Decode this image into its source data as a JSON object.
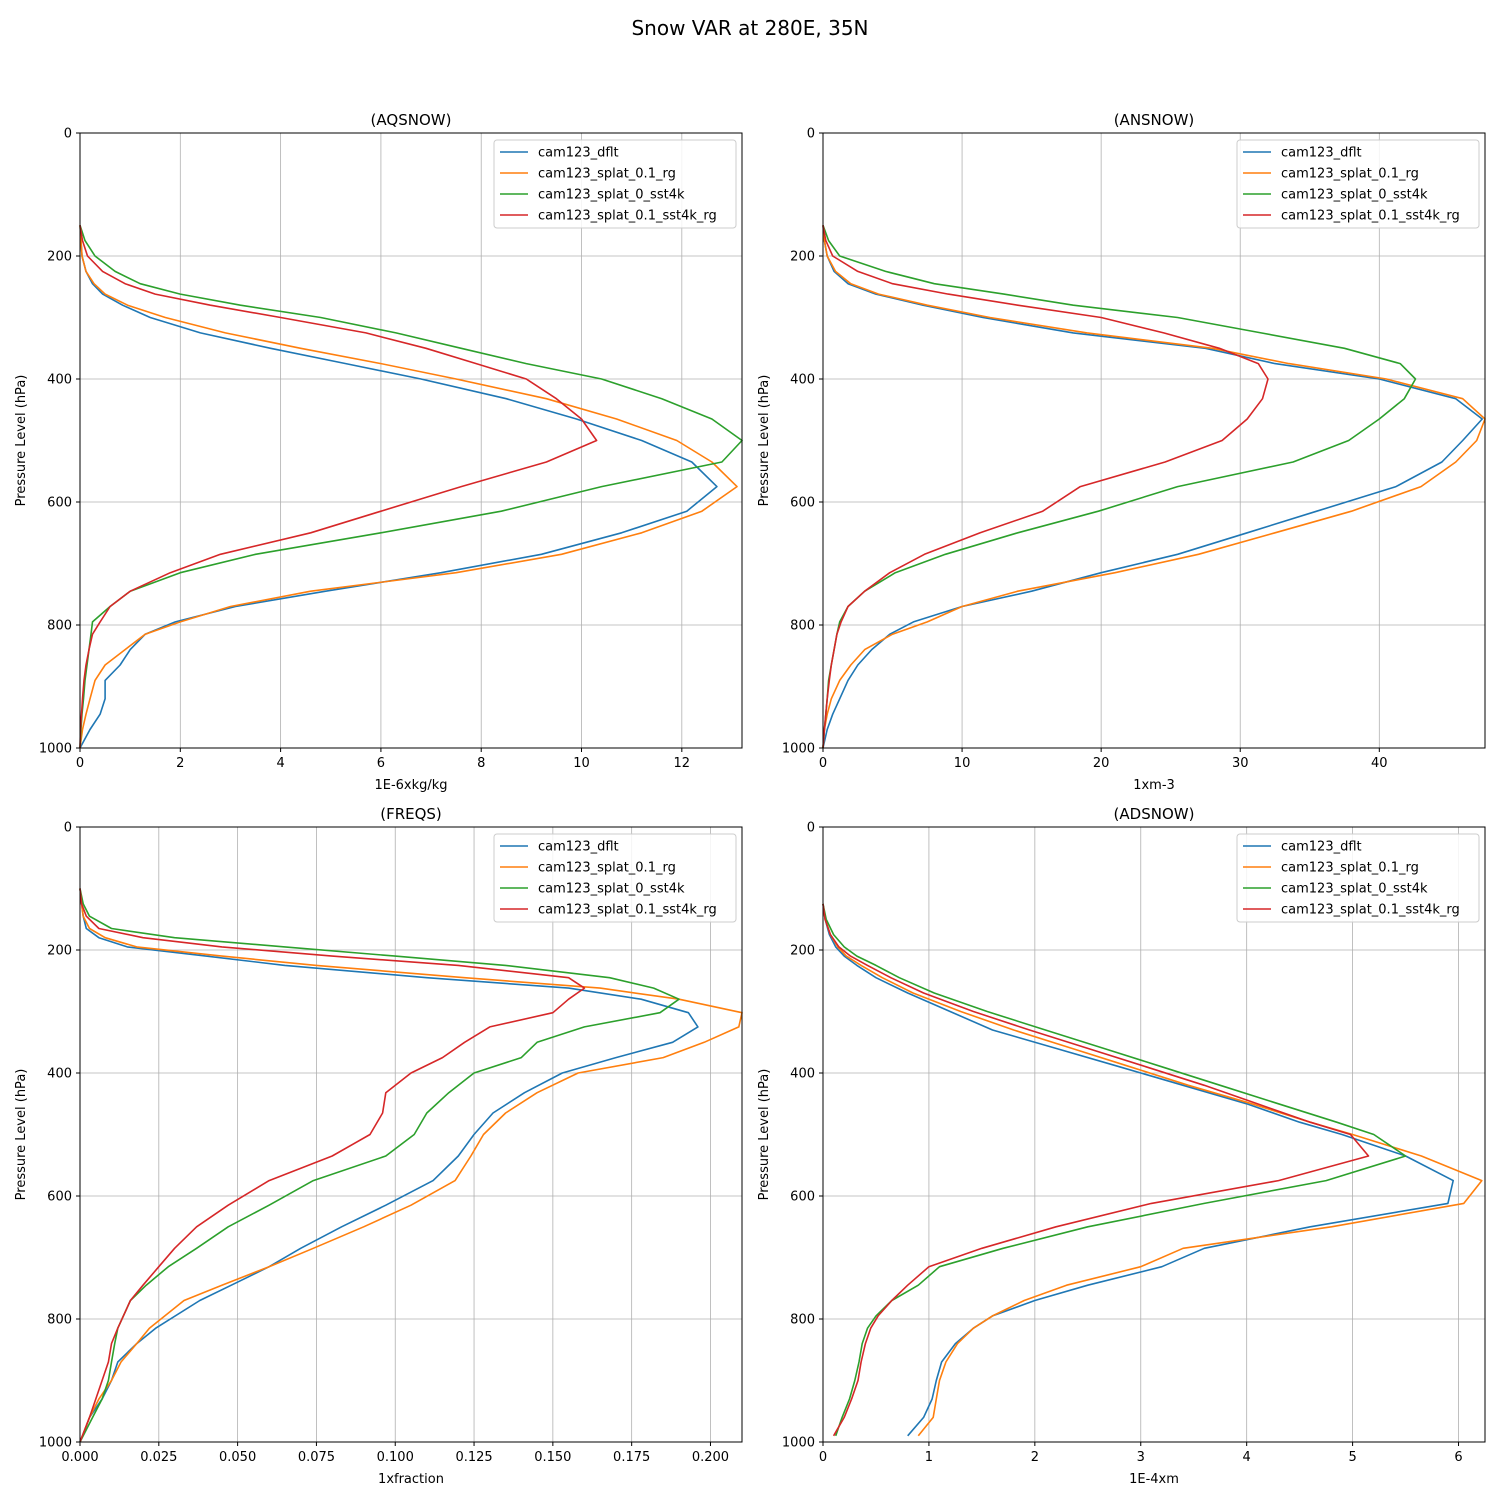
{
  "figure_title": "Snow VAR at 280E, 35N",
  "colors": {
    "cam123_dflt": "#1f77b4",
    "cam123_splat_0.1_rg": "#ff7f0e",
    "cam123_splat_0_sst4k": "#2ca02c",
    "cam123_splat_0.1_sst4k_rg": "#d62728"
  },
  "chart_data": [
    {
      "type": "line",
      "title": "(AQSNOW)",
      "xlabel": "1E-6xkg/kg",
      "ylabel": "Pressure Level (hPa)",
      "xlim": [
        0,
        13.2
      ],
      "ylim": [
        1000,
        0
      ],
      "xticks": [
        "0",
        "2",
        "4",
        "6",
        "8",
        "10",
        "12"
      ],
      "yticks": [
        "0",
        "200",
        "400",
        "600",
        "800",
        "1000"
      ],
      "grid": true,
      "legend": "top-right",
      "y": [
        150,
        175,
        200,
        225,
        245,
        262,
        280,
        300,
        325,
        350,
        375,
        400,
        432,
        465,
        500,
        535,
        575,
        615,
        650,
        685,
        715,
        745,
        770,
        795,
        815,
        840,
        865,
        890,
        920,
        945,
        970,
        1000
      ],
      "series": [
        {
          "name": "cam123_dflt",
          "values": [
            0.0,
            0.02,
            0.04,
            0.12,
            0.25,
            0.45,
            0.85,
            1.4,
            2.4,
            3.8,
            5.3,
            6.8,
            8.5,
            9.9,
            11.2,
            12.2,
            12.7,
            12.1,
            10.8,
            9.2,
            7.2,
            4.9,
            3.1,
            1.9,
            1.3,
            1.0,
            0.8,
            0.5,
            0.5,
            0.4,
            0.2,
            0.0
          ]
        },
        {
          "name": "cam123_splat_0.1_rg",
          "values": [
            0.0,
            0.02,
            0.04,
            0.12,
            0.28,
            0.5,
            0.95,
            1.7,
            2.9,
            4.4,
            6.0,
            7.5,
            9.3,
            10.7,
            11.9,
            12.6,
            13.1,
            12.4,
            11.2,
            9.6,
            7.5,
            4.6,
            3.0,
            2.0,
            1.3,
            0.9,
            0.5,
            0.3,
            0.2,
            0.12,
            0.05,
            0.0
          ]
        },
        {
          "name": "cam123_splat_0_sst4k",
          "values": [
            0.0,
            0.1,
            0.3,
            0.7,
            1.2,
            2.0,
            3.2,
            4.8,
            6.3,
            7.6,
            8.9,
            10.4,
            11.6,
            12.6,
            13.2,
            12.8,
            10.4,
            8.4,
            6.0,
            3.5,
            2.0,
            1.0,
            0.6,
            0.25,
            0.22,
            0.18,
            0.14,
            0.1,
            0.07,
            0.04,
            0.02,
            0.0
          ]
        },
        {
          "name": "cam123_splat_0.1_sst4k_rg",
          "values": [
            0.0,
            0.05,
            0.15,
            0.45,
            0.9,
            1.5,
            2.6,
            4.0,
            5.7,
            6.9,
            7.9,
            8.9,
            9.5,
            10.0,
            10.3,
            9.3,
            7.6,
            6.0,
            4.6,
            2.8,
            1.8,
            1.0,
            0.6,
            0.4,
            0.25,
            0.18,
            0.12,
            0.08,
            0.05,
            0.03,
            0.01,
            0.0
          ]
        }
      ]
    },
    {
      "type": "line",
      "title": "(ANSNOW)",
      "xlabel": "1xm-3",
      "ylabel": "Pressure Level (hPa)",
      "xlim": [
        0,
        47.6
      ],
      "ylim": [
        1000,
        0
      ],
      "xticks": [
        "0",
        "10",
        "20",
        "30",
        "40"
      ],
      "yticks": [
        "0",
        "200",
        "400",
        "600",
        "800",
        "1000"
      ],
      "grid": true,
      "legend": "top-right",
      "y": [
        150,
        175,
        200,
        225,
        245,
        262,
        280,
        300,
        325,
        350,
        375,
        400,
        432,
        465,
        500,
        535,
        575,
        615,
        650,
        685,
        715,
        745,
        770,
        795,
        815,
        840,
        865,
        890,
        920,
        945,
        970,
        1000
      ],
      "series": [
        {
          "name": "cam123_dflt",
          "values": [
            0.0,
            0.1,
            0.3,
            0.8,
            1.8,
            3.8,
            7.2,
            11.5,
            18.0,
            27.5,
            32.5,
            40.0,
            45.5,
            47.4,
            46.0,
            44.5,
            41.2,
            35.5,
            30.5,
            25.5,
            20.0,
            15.0,
            10.0,
            6.5,
            4.8,
            3.5,
            2.5,
            1.8,
            1.2,
            0.7,
            0.3,
            0.0
          ]
        },
        {
          "name": "cam123_splat_0.1_rg",
          "values": [
            0.0,
            0.1,
            0.3,
            0.9,
            2.0,
            4.0,
            7.5,
            12.0,
            19.0,
            28.0,
            33.5,
            40.5,
            46.0,
            47.6,
            47.0,
            45.5,
            43.0,
            38.0,
            32.5,
            27.0,
            21.0,
            14.0,
            10.0,
            7.5,
            5.0,
            3.0,
            2.0,
            1.2,
            0.6,
            0.3,
            0.1,
            0.0
          ]
        },
        {
          "name": "cam123_splat_0_sst4k",
          "values": [
            0.0,
            0.4,
            1.2,
            4.5,
            8.0,
            13.0,
            18.0,
            25.5,
            31.5,
            37.5,
            41.5,
            42.6,
            41.8,
            40.0,
            37.8,
            33.8,
            25.5,
            19.8,
            14.0,
            8.8,
            5.2,
            3.0,
            1.8,
            1.2,
            1.0,
            0.8,
            0.6,
            0.4,
            0.3,
            0.2,
            0.1,
            0.0
          ]
        },
        {
          "name": "cam123_splat_0.1_sst4k_rg",
          "values": [
            0.0,
            0.2,
            0.7,
            2.5,
            5.0,
            9.0,
            14.0,
            20.0,
            24.5,
            28.5,
            31.3,
            32.0,
            31.6,
            30.5,
            28.7,
            24.6,
            18.5,
            15.8,
            11.3,
            7.3,
            4.8,
            3.0,
            1.8,
            1.3,
            1.0,
            0.8,
            0.6,
            0.45,
            0.3,
            0.2,
            0.1,
            0.0
          ]
        }
      ]
    },
    {
      "type": "line",
      "title": "(FREQS)",
      "xlabel": "1xfraction",
      "ylabel": "Pressure Level (hPa)",
      "xlim": [
        0,
        0.21
      ],
      "ylim": [
        1000,
        0
      ],
      "xticks": [
        "0.000",
        "0.025",
        "0.050",
        "0.075",
        "0.100",
        "0.125",
        "0.150",
        "0.175",
        "0.200"
      ],
      "yticks": [
        "0",
        "200",
        "400",
        "600",
        "800",
        "1000"
      ],
      "grid": true,
      "legend": "top-right",
      "y": [
        100,
        125,
        145,
        165,
        180,
        195,
        210,
        225,
        245,
        262,
        280,
        302,
        325,
        350,
        375,
        400,
        432,
        465,
        500,
        535,
        575,
        615,
        650,
        685,
        715,
        745,
        770,
        815,
        840,
        870,
        900,
        930,
        960,
        1000
      ],
      "series": [
        {
          "name": "cam123_dflt",
          "values": [
            0.0,
            0.0005,
            0.001,
            0.002,
            0.006,
            0.015,
            0.04,
            0.065,
            0.11,
            0.155,
            0.178,
            0.193,
            0.196,
            0.188,
            0.17,
            0.153,
            0.141,
            0.131,
            0.125,
            0.12,
            0.112,
            0.097,
            0.083,
            0.07,
            0.06,
            0.048,
            0.038,
            0.024,
            0.018,
            0.012,
            0.01,
            0.007,
            0.003,
            0.0
          ]
        },
        {
          "name": "cam123_splat_0.1_rg",
          "values": [
            0.0,
            0.0005,
            0.001,
            0.003,
            0.008,
            0.018,
            0.045,
            0.075,
            0.122,
            0.165,
            0.19,
            0.21,
            0.209,
            0.198,
            0.185,
            0.158,
            0.145,
            0.135,
            0.128,
            0.124,
            0.119,
            0.105,
            0.09,
            0.074,
            0.06,
            0.045,
            0.033,
            0.022,
            0.018,
            0.013,
            0.01,
            0.006,
            0.003,
            0.0
          ]
        },
        {
          "name": "cam123_splat_0_sst4k",
          "values": [
            0.0,
            0.001,
            0.003,
            0.01,
            0.03,
            0.065,
            0.1,
            0.135,
            0.168,
            0.182,
            0.19,
            0.184,
            0.16,
            0.145,
            0.14,
            0.125,
            0.117,
            0.11,
            0.106,
            0.097,
            0.074,
            0.06,
            0.047,
            0.037,
            0.028,
            0.021,
            0.016,
            0.012,
            0.011,
            0.01,
            0.009,
            0.007,
            0.004,
            0.0
          ]
        },
        {
          "name": "cam123_splat_0.1_sst4k_rg",
          "values": [
            0.0,
            0.0005,
            0.002,
            0.006,
            0.02,
            0.045,
            0.08,
            0.12,
            0.155,
            0.16,
            0.155,
            0.15,
            0.13,
            0.122,
            0.115,
            0.105,
            0.097,
            0.096,
            0.092,
            0.08,
            0.06,
            0.047,
            0.037,
            0.03,
            0.025,
            0.02,
            0.016,
            0.012,
            0.01,
            0.009,
            0.007,
            0.005,
            0.003,
            0.0
          ]
        }
      ]
    },
    {
      "type": "line",
      "title": "(ADSNOW)",
      "xlabel": "1E-4xm",
      "ylabel": "Pressure Level (hPa)",
      "xlim": [
        0,
        6.25
      ],
      "ylim": [
        1000,
        0
      ],
      "xticks": [
        "0",
        "1",
        "2",
        "3",
        "4",
        "5",
        "6"
      ],
      "yticks": [
        "0",
        "200",
        "400",
        "600",
        "800",
        "1000"
      ],
      "grid": true,
      "legend": "top-right",
      "y": [
        125,
        150,
        175,
        195,
        210,
        225,
        245,
        270,
        300,
        330,
        360,
        390,
        420,
        450,
        480,
        500,
        535,
        575,
        612,
        650,
        685,
        715,
        745,
        770,
        795,
        815,
        840,
        870,
        900,
        930,
        960,
        990
      ],
      "series": [
        {
          "name": "cam123_dflt",
          "values": [
            0.0,
            0.02,
            0.06,
            0.12,
            0.2,
            0.32,
            0.5,
            0.8,
            1.2,
            1.6,
            2.2,
            2.8,
            3.4,
            4.0,
            4.5,
            4.9,
            5.5,
            5.95,
            5.9,
            4.6,
            3.6,
            3.2,
            2.5,
            2.0,
            1.6,
            1.42,
            1.25,
            1.12,
            1.07,
            1.03,
            0.95,
            0.8
          ]
        },
        {
          "name": "cam123_splat_0.1_rg",
          "values": [
            0.0,
            0.02,
            0.07,
            0.14,
            0.22,
            0.36,
            0.56,
            0.85,
            1.3,
            1.8,
            2.35,
            2.9,
            3.45,
            4.05,
            4.6,
            5.0,
            5.65,
            6.22,
            6.05,
            4.8,
            3.4,
            3.0,
            2.3,
            1.9,
            1.6,
            1.42,
            1.27,
            1.16,
            1.1,
            1.07,
            1.04,
            0.9
          ]
        },
        {
          "name": "cam123_splat_0_sst4k",
          "values": [
            0.0,
            0.03,
            0.1,
            0.2,
            0.32,
            0.5,
            0.72,
            1.05,
            1.55,
            2.1,
            2.65,
            3.2,
            3.75,
            4.3,
            4.85,
            5.2,
            5.5,
            4.75,
            3.6,
            2.5,
            1.7,
            1.1,
            0.9,
            0.65,
            0.5,
            0.42,
            0.37,
            0.34,
            0.3,
            0.25,
            0.18,
            0.12
          ]
        },
        {
          "name": "cam123_splat_0.1_sst4k_rg",
          "values": [
            0.0,
            0.02,
            0.07,
            0.15,
            0.26,
            0.42,
            0.64,
            0.95,
            1.42,
            1.95,
            2.5,
            3.05,
            3.6,
            4.1,
            4.6,
            4.98,
            5.15,
            4.3,
            3.1,
            2.2,
            1.5,
            1.0,
            0.8,
            0.65,
            0.52,
            0.45,
            0.4,
            0.36,
            0.33,
            0.27,
            0.2,
            0.1
          ]
        }
      ]
    }
  ]
}
